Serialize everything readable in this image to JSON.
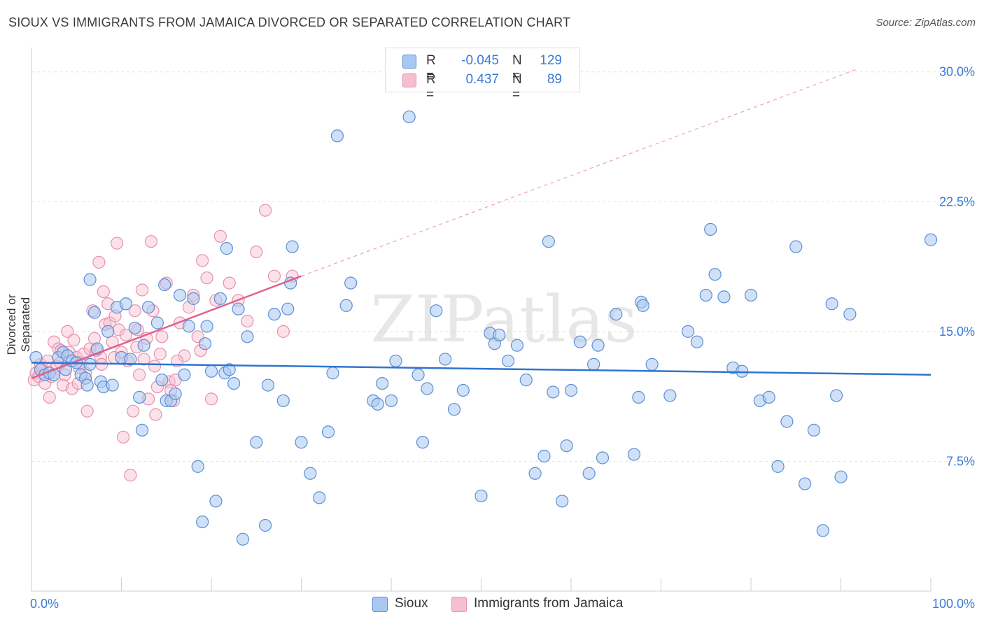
{
  "title": "SIOUX VS IMMIGRANTS FROM JAMAICA DIVORCED OR SEPARATED CORRELATION CHART",
  "source": "Source: ZipAtlas.com",
  "watermark": "ZIPatlas",
  "colors": {
    "sioux_fill": "#a9c8f0",
    "sioux_stroke": "#5b8fd6",
    "sioux_line": "#2f74d0",
    "jamaica_fill": "#f6bfd0",
    "jamaica_stroke": "#e890ad",
    "jamaica_line": "#e0608c",
    "tick_label": "#3a7bd5",
    "grid": "#e4e4e4"
  },
  "legend": {
    "r_label": "R =",
    "n_label": "N =",
    "rows": [
      {
        "r": "-0.045",
        "n": "129",
        "swatch": "sioux"
      },
      {
        "r": "0.437",
        "n": "89",
        "swatch": "jamaica"
      }
    ]
  },
  "bottom_legend": [
    {
      "label": "Sioux",
      "swatch": "sioux"
    },
    {
      "label": "Immigrants from Jamaica",
      "swatch": "jamaica"
    }
  ],
  "chart_data": {
    "type": "scatter",
    "title": "SIOUX VS IMMIGRANTS FROM JAMAICA DIVORCED OR SEPARATED CORRELATION CHART",
    "xlabel": "",
    "ylabel": "Divorced or Separated",
    "xlim": [
      0,
      100
    ],
    "ylim": [
      0,
      31
    ],
    "x_tick_labels": [
      "0.0%",
      "100.0%"
    ],
    "y_ticks": [
      7.5,
      15.0,
      22.5,
      30.0
    ],
    "y_tick_labels": [
      "7.5%",
      "15.0%",
      "22.5%",
      "30.0%"
    ],
    "grid": true,
    "legend_placement": "top-center",
    "series": [
      {
        "name": "Sioux",
        "r": -0.045,
        "n": 129,
        "trend": [
          [
            0,
            13.2
          ],
          [
            100,
            12.5
          ]
        ],
        "points": [
          [
            0.5,
            13.5
          ],
          [
            1,
            12.8
          ],
          [
            1.5,
            12.5
          ],
          [
            2,
            12.6
          ],
          [
            2.5,
            12.5
          ],
          [
            3,
            13.5
          ],
          [
            3.5,
            13.8
          ],
          [
            3.8,
            12.8
          ],
          [
            4,
            13.6
          ],
          [
            4.5,
            13.3
          ],
          [
            5,
            13.2
          ],
          [
            5.5,
            12.5
          ],
          [
            6,
            12.3
          ],
          [
            6.2,
            11.9
          ],
          [
            6.5,
            13.1
          ],
          [
            6.5,
            18.0
          ],
          [
            7,
            16.1
          ],
          [
            7.3,
            14.0
          ],
          [
            7.7,
            12.1
          ],
          [
            8,
            11.8
          ],
          [
            8.5,
            15.0
          ],
          [
            9,
            11.9
          ],
          [
            9.5,
            16.4
          ],
          [
            10,
            13.5
          ],
          [
            10.5,
            16.6
          ],
          [
            11,
            13.4
          ],
          [
            11.5,
            15.2
          ],
          [
            12,
            11.2
          ],
          [
            12.3,
            9.3
          ],
          [
            12.5,
            14.2
          ],
          [
            13,
            16.4
          ],
          [
            14,
            15.5
          ],
          [
            14.5,
            12.2
          ],
          [
            14.8,
            17.7
          ],
          [
            15,
            11.0
          ],
          [
            15.5,
            11.0
          ],
          [
            16,
            11.4
          ],
          [
            16.5,
            17.1
          ],
          [
            17,
            12.5
          ],
          [
            17.5,
            15.3
          ],
          [
            18,
            16.9
          ],
          [
            18.5,
            7.2
          ],
          [
            19,
            4.0
          ],
          [
            19.3,
            14.3
          ],
          [
            19.5,
            15.3
          ],
          [
            20,
            12.7
          ],
          [
            20.5,
            5.2
          ],
          [
            21,
            16.9
          ],
          [
            21.5,
            12.6
          ],
          [
            21.7,
            19.8
          ],
          [
            22,
            12.8
          ],
          [
            22.5,
            12.0
          ],
          [
            23,
            16.3
          ],
          [
            23.5,
            3.0
          ],
          [
            24,
            14.7
          ],
          [
            25,
            8.6
          ],
          [
            26,
            3.8
          ],
          [
            26.3,
            11.9
          ],
          [
            27,
            16.0
          ],
          [
            28,
            11.0
          ],
          [
            28.5,
            16.3
          ],
          [
            28.8,
            17.8
          ],
          [
            29,
            19.9
          ],
          [
            30,
            8.6
          ],
          [
            31,
            6.8
          ],
          [
            32,
            5.4
          ],
          [
            33,
            9.2
          ],
          [
            33.5,
            12.6
          ],
          [
            34,
            26.3
          ],
          [
            35,
            16.5
          ],
          [
            35.5,
            17.8
          ],
          [
            38,
            11.0
          ],
          [
            38.5,
            10.8
          ],
          [
            39,
            12.0
          ],
          [
            40,
            11.0
          ],
          [
            40.5,
            13.3
          ],
          [
            42,
            27.4
          ],
          [
            43,
            12.5
          ],
          [
            43.5,
            8.6
          ],
          [
            44,
            11.7
          ],
          [
            45,
            16.2
          ],
          [
            46,
            13.4
          ],
          [
            47,
            10.5
          ],
          [
            48,
            11.6
          ],
          [
            50,
            5.5
          ],
          [
            51,
            14.9
          ],
          [
            51.5,
            14.3
          ],
          [
            52,
            14.8
          ],
          [
            53,
            13.3
          ],
          [
            54,
            14.2
          ],
          [
            55,
            12.2
          ],
          [
            56,
            6.8
          ],
          [
            57,
            7.8
          ],
          [
            57.5,
            20.2
          ],
          [
            58,
            11.5
          ],
          [
            59,
            5.2
          ],
          [
            59.5,
            8.4
          ],
          [
            60,
            11.6
          ],
          [
            61,
            14.4
          ],
          [
            62,
            6.8
          ],
          [
            62.5,
            13.1
          ],
          [
            63,
            14.2
          ],
          [
            63.5,
            7.7
          ],
          [
            65,
            16.0
          ],
          [
            67,
            7.9
          ],
          [
            67.5,
            11.2
          ],
          [
            67.8,
            16.7
          ],
          [
            68,
            16.5
          ],
          [
            69,
            13.1
          ],
          [
            71,
            11.3
          ],
          [
            73,
            15.0
          ],
          [
            74,
            14.4
          ],
          [
            75,
            17.1
          ],
          [
            75.5,
            20.9
          ],
          [
            76,
            18.3
          ],
          [
            77,
            17.0
          ],
          [
            78,
            12.9
          ],
          [
            79,
            12.7
          ],
          [
            80,
            17.1
          ],
          [
            81,
            11.0
          ],
          [
            82,
            11.2
          ],
          [
            83,
            7.2
          ],
          [
            84,
            9.8
          ],
          [
            85,
            19.9
          ],
          [
            86,
            6.2
          ],
          [
            87,
            9.3
          ],
          [
            88,
            3.5
          ],
          [
            89,
            16.6
          ],
          [
            89.5,
            11.3
          ],
          [
            90,
            6.6
          ],
          [
            91,
            16.0
          ],
          [
            100,
            20.3
          ]
        ]
      },
      {
        "name": "Immigrants from Jamaica",
        "r": 0.437,
        "n": 89,
        "trend": [
          [
            0,
            12.3
          ],
          [
            30,
            18.2
          ]
        ],
        "trend_extension": [
          [
            30,
            18.2
          ],
          [
            92,
            30.2
          ]
        ],
        "points": [
          [
            0.3,
            12.2
          ],
          [
            0.5,
            12.6
          ],
          [
            0.8,
            12.4
          ],
          [
            1,
            13.1
          ],
          [
            1.2,
            12.9
          ],
          [
            1.5,
            12.0
          ],
          [
            1.8,
            13.3
          ],
          [
            2,
            11.2
          ],
          [
            2.2,
            12.4
          ],
          [
            2.5,
            14.4
          ],
          [
            2.8,
            13.0
          ],
          [
            3,
            14.0
          ],
          [
            3.2,
            13.2
          ],
          [
            3.5,
            11.9
          ],
          [
            3.7,
            12.5
          ],
          [
            4,
            15.0
          ],
          [
            4.2,
            13.8
          ],
          [
            4.5,
            11.7
          ],
          [
            4.7,
            14.5
          ],
          [
            5,
            13.5
          ],
          [
            5.2,
            12.0
          ],
          [
            5.5,
            13.2
          ],
          [
            5.8,
            13.7
          ],
          [
            6,
            12.6
          ],
          [
            6.2,
            10.4
          ],
          [
            6.5,
            14.0
          ],
          [
            6.8,
            16.2
          ],
          [
            7,
            14.6
          ],
          [
            7.2,
            13.9
          ],
          [
            7.5,
            19.0
          ],
          [
            7.7,
            13.5
          ],
          [
            8,
            17.3
          ],
          [
            8.2,
            15.4
          ],
          [
            8.5,
            16.6
          ],
          [
            8.7,
            15.5
          ],
          [
            9,
            14.4
          ],
          [
            9.2,
            13.5
          ],
          [
            9.5,
            20.1
          ],
          [
            9.7,
            15.1
          ],
          [
            10,
            13.8
          ],
          [
            10.2,
            8.9
          ],
          [
            10.5,
            14.8
          ],
          [
            10.7,
            13.3
          ],
          [
            11,
            6.7
          ],
          [
            11.3,
            10.4
          ],
          [
            11.5,
            16.2
          ],
          [
            11.8,
            15.1
          ],
          [
            12,
            12.5
          ],
          [
            12.3,
            17.4
          ],
          [
            12.5,
            13.4
          ],
          [
            12.8,
            14.6
          ],
          [
            13,
            11.1
          ],
          [
            13.3,
            20.2
          ],
          [
            13.5,
            16.2
          ],
          [
            13.8,
            10.2
          ],
          [
            14,
            11.8
          ],
          [
            14.3,
            13.7
          ],
          [
            14.5,
            14.7
          ],
          [
            15,
            17.8
          ],
          [
            15.3,
            12.1
          ],
          [
            15.5,
            11.6
          ],
          [
            15.8,
            11.0
          ],
          [
            16,
            12.2
          ],
          [
            16.5,
            15.5
          ],
          [
            17,
            13.6
          ],
          [
            17.5,
            16.4
          ],
          [
            18,
            17.1
          ],
          [
            18.5,
            14.7
          ],
          [
            19,
            19.1
          ],
          [
            19.5,
            18.1
          ],
          [
            20,
            11.1
          ],
          [
            20.5,
            16.8
          ],
          [
            21,
            20.5
          ],
          [
            22,
            17.8
          ],
          [
            23,
            16.8
          ],
          [
            24,
            15.6
          ],
          [
            25,
            19.6
          ],
          [
            26,
            22.0
          ],
          [
            27,
            18.2
          ],
          [
            28,
            15.0
          ],
          [
            29,
            18.2
          ],
          [
            3.3,
            13.9
          ],
          [
            5.3,
            12.9
          ],
          [
            7.8,
            13.1
          ],
          [
            9.3,
            15.9
          ],
          [
            11.7,
            14.1
          ],
          [
            13.7,
            13.0
          ],
          [
            16.2,
            13.3
          ],
          [
            18.8,
            13.9
          ]
        ]
      }
    ]
  }
}
